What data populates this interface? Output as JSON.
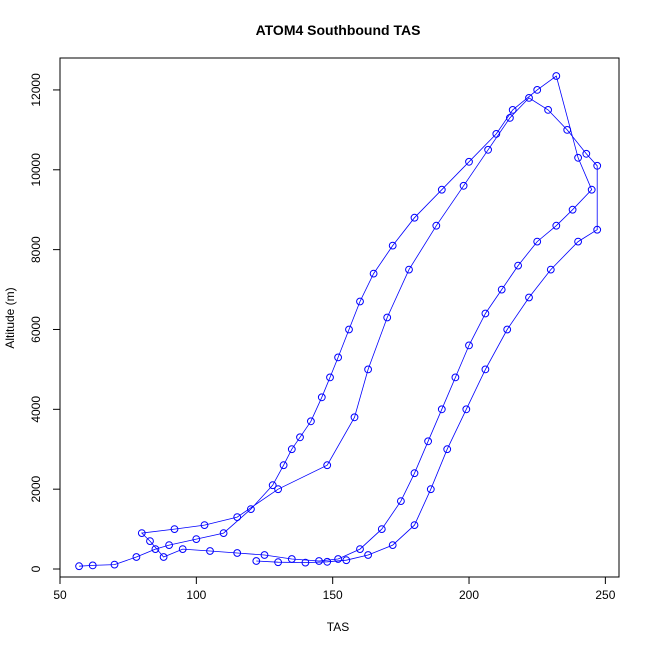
{
  "chart_data": {
    "type": "scatter",
    "title": "ATOM4 Southbound TAS",
    "xlabel": "TAS",
    "ylabel": "Altitude (m)",
    "xlim": [
      50,
      255
    ],
    "ylim": [
      -200,
      12800
    ],
    "xticks": [
      50,
      100,
      150,
      200,
      250
    ],
    "yticks": [
      0,
      2000,
      4000,
      6000,
      8000,
      10000,
      12000
    ],
    "grid": false,
    "legend": "none",
    "colors": {
      "series": "#0000ff",
      "axes": "#000000",
      "background": "#ffffff"
    },
    "series": [
      {
        "marker": "open-circle",
        "line": true,
        "points": [
          [
            57,
            70
          ],
          [
            62,
            90
          ],
          [
            70,
            110
          ],
          [
            78,
            300
          ],
          [
            85,
            500
          ],
          [
            90,
            600
          ],
          [
            100,
            750
          ],
          [
            110,
            900
          ],
          [
            120,
            1500
          ],
          [
            128,
            2100
          ],
          [
            132,
            2600
          ],
          [
            135,
            3000
          ],
          [
            138,
            3300
          ],
          [
            142,
            3700
          ],
          [
            146,
            4300
          ],
          [
            149,
            4800
          ],
          [
            152,
            5300
          ],
          [
            156,
            6000
          ],
          [
            160,
            6700
          ],
          [
            165,
            7400
          ],
          [
            172,
            8100
          ],
          [
            180,
            8800
          ],
          [
            190,
            9500
          ],
          [
            200,
            10200
          ],
          [
            210,
            10900
          ],
          [
            216,
            11500
          ],
          [
            225,
            12000
          ],
          [
            232,
            12350
          ],
          [
            240,
            10300
          ],
          [
            245,
            9500
          ],
          [
            238,
            9000
          ],
          [
            232,
            8600
          ],
          [
            225,
            8200
          ],
          [
            218,
            7600
          ],
          [
            212,
            7000
          ],
          [
            206,
            6400
          ],
          [
            200,
            5600
          ],
          [
            195,
            4800
          ],
          [
            190,
            4000
          ],
          [
            185,
            3200
          ],
          [
            180,
            2400
          ],
          [
            175,
            1700
          ],
          [
            168,
            1000
          ],
          [
            160,
            500
          ],
          [
            152,
            250
          ],
          [
            145,
            200
          ],
          [
            135,
            250
          ],
          [
            125,
            350
          ],
          [
            115,
            400
          ],
          [
            105,
            450
          ],
          [
            95,
            500
          ],
          [
            88,
            300
          ],
          [
            83,
            700
          ],
          [
            80,
            900
          ],
          [
            92,
            1000
          ],
          [
            103,
            1100
          ],
          [
            115,
            1300
          ],
          [
            130,
            2000
          ],
          [
            148,
            2600
          ],
          [
            158,
            3800
          ],
          [
            163,
            5000
          ],
          [
            170,
            6300
          ],
          [
            178,
            7500
          ],
          [
            188,
            8600
          ],
          [
            198,
            9600
          ],
          [
            207,
            10500
          ],
          [
            215,
            11300
          ],
          [
            222,
            11800
          ],
          [
            229,
            11500
          ],
          [
            236,
            11000
          ],
          [
            243,
            10400
          ],
          [
            247,
            10100
          ],
          [
            247,
            8500
          ],
          [
            240,
            8200
          ],
          [
            230,
            7500
          ],
          [
            222,
            6800
          ],
          [
            214,
            6000
          ],
          [
            206,
            5000
          ],
          [
            199,
            4000
          ],
          [
            192,
            3000
          ],
          [
            186,
            2000
          ],
          [
            180,
            1100
          ],
          [
            172,
            600
          ],
          [
            163,
            350
          ],
          [
            155,
            220
          ],
          [
            148,
            180
          ],
          [
            140,
            160
          ],
          [
            130,
            170
          ],
          [
            122,
            200
          ]
        ]
      }
    ]
  }
}
